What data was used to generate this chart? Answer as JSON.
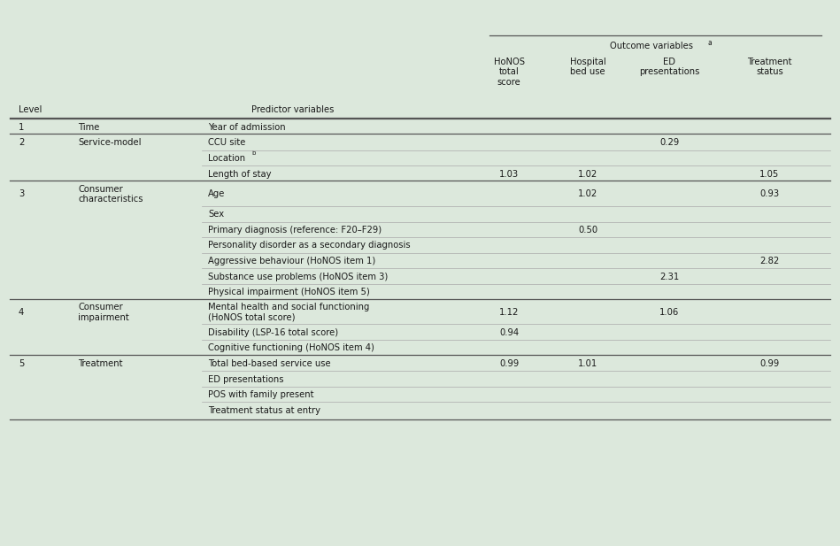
{
  "bg_color": "#dce8dc",
  "text_color": "#1a1a1a",
  "rows": [
    {
      "level": "1",
      "group": "Time",
      "predictor": "Year of admission",
      "honos": "",
      "hospital": "",
      "ed": "",
      "treatment": "",
      "two_line_pred": false,
      "two_line_group": false
    },
    {
      "level": "2",
      "group": "Service-model",
      "predictor": "CCU site",
      "honos": "",
      "hospital": "",
      "ed": "0.29",
      "treatment": "",
      "two_line_pred": false,
      "two_line_group": false
    },
    {
      "level": "",
      "group": "",
      "predictor": "Location",
      "pred_super": "b",
      "honos": "",
      "hospital": "",
      "ed": "",
      "treatment": "",
      "two_line_pred": false,
      "two_line_group": false
    },
    {
      "level": "",
      "group": "",
      "predictor": "Length of stay",
      "honos": "1.03",
      "hospital": "1.02",
      "ed": "",
      "treatment": "1.05",
      "two_line_pred": false,
      "two_line_group": false
    },
    {
      "level": "3",
      "group": "Consumer\ncharacteristics",
      "predictor": "Age",
      "honos": "",
      "hospital": "1.02",
      "ed": "",
      "treatment": "0.93",
      "two_line_pred": false,
      "two_line_group": true
    },
    {
      "level": "",
      "group": "",
      "predictor": "Sex",
      "honos": "",
      "hospital": "",
      "ed": "",
      "treatment": "",
      "two_line_pred": false,
      "two_line_group": false
    },
    {
      "level": "",
      "group": "",
      "predictor": "Primary diagnosis (reference: F20–F29)",
      "honos": "",
      "hospital": "0.50",
      "ed": "",
      "treatment": "",
      "two_line_pred": false,
      "two_line_group": false
    },
    {
      "level": "",
      "group": "",
      "predictor": "Personality disorder as a secondary diagnosis",
      "honos": "",
      "hospital": "",
      "ed": "",
      "treatment": "",
      "two_line_pred": false,
      "two_line_group": false
    },
    {
      "level": "",
      "group": "",
      "predictor": "Aggressive behaviour (HoNOS item 1)",
      "honos": "",
      "hospital": "",
      "ed": "",
      "treatment": "2.82",
      "two_line_pred": false,
      "two_line_group": false
    },
    {
      "level": "",
      "group": "",
      "predictor": "Substance use problems (HoNOS item 3)",
      "honos": "",
      "hospital": "",
      "ed": "2.31",
      "treatment": "",
      "two_line_pred": false,
      "two_line_group": false
    },
    {
      "level": "",
      "group": "",
      "predictor": "Physical impairment (HoNOS item 5)",
      "honos": "",
      "hospital": "",
      "ed": "",
      "treatment": "",
      "two_line_pred": false,
      "two_line_group": false
    },
    {
      "level": "4",
      "group": "Consumer\nimpairment",
      "predictor": "Mental health and social functioning\n(HoNOS total score)",
      "honos": "1.12",
      "hospital": "",
      "ed": "1.06",
      "treatment": "",
      "two_line_pred": true,
      "two_line_group": true
    },
    {
      "level": "",
      "group": "",
      "predictor": "Disability (LSP-16 total score)",
      "honos": "0.94",
      "hospital": "",
      "ed": "",
      "treatment": "",
      "two_line_pred": false,
      "two_line_group": false
    },
    {
      "level": "",
      "group": "",
      "predictor": "Cognitive functioning (HoNOS item 4)",
      "honos": "",
      "hospital": "",
      "ed": "",
      "treatment": "",
      "two_line_pred": false,
      "two_line_group": false
    },
    {
      "level": "5",
      "group": "Treatment",
      "predictor": "Total bed-based service use",
      "honos": "0.99",
      "hospital": "1.01",
      "ed": "",
      "treatment": "0.99",
      "two_line_pred": false,
      "two_line_group": false
    },
    {
      "level": "",
      "group": "",
      "predictor": "ED presentations",
      "honos": "",
      "hospital": "",
      "ed": "",
      "treatment": "",
      "two_line_pred": false,
      "two_line_group": false
    },
    {
      "level": "",
      "group": "",
      "predictor": "POS with family present",
      "honos": "",
      "hospital": "",
      "ed": "",
      "treatment": "",
      "two_line_pred": false,
      "two_line_group": false
    },
    {
      "level": "",
      "group": "",
      "predictor": "Treatment status at entry",
      "honos": "",
      "hospital": "",
      "ed": "",
      "treatment": "",
      "two_line_pred": false,
      "two_line_group": false
    }
  ],
  "col_x": {
    "level": 0.022,
    "group": 0.093,
    "predictor": 0.248,
    "honos": 0.598,
    "hospital": 0.692,
    "ed": 0.789,
    "treatment": 0.908
  },
  "font_size": 7.2,
  "header_font_size": 7.2,
  "line_color_heavy": "#555555",
  "line_color_light": "#aaaaaa",
  "major_sep_rows": [
    0,
    1,
    4,
    11,
    14
  ],
  "thin_sep_rows": [
    2,
    3,
    5,
    6,
    7,
    8,
    9,
    10,
    12,
    13,
    15,
    16,
    17
  ]
}
